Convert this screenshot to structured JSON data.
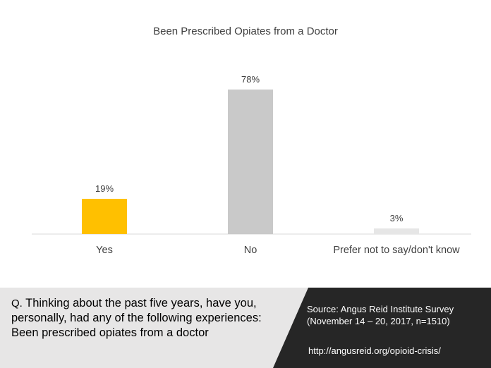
{
  "chart_data": {
    "type": "bar",
    "title": "Been Prescribed Opiates from a Doctor",
    "categories": [
      "Yes",
      "No",
      "Prefer not to say/don't know"
    ],
    "values": [
      19,
      78,
      3
    ],
    "data_labels": [
      "19%",
      "78%",
      "3%"
    ],
    "colors": [
      "#ffc000",
      "#c9c9c9",
      "#e6e6e6"
    ],
    "ylim": [
      0,
      100
    ],
    "grid": false,
    "legend": "none"
  },
  "footer": {
    "question_prefix": "Q.",
    "question_text": "Thinking about the past five years, have you, personally, had any of the following experiences: Been prescribed opiates from a doctor",
    "source_text": "Source:  Angus Reid Institute Survey (November 14 – 20, 2017, n=1510)",
    "source_url": "http://angusreid.org/opioid-crisis/"
  }
}
